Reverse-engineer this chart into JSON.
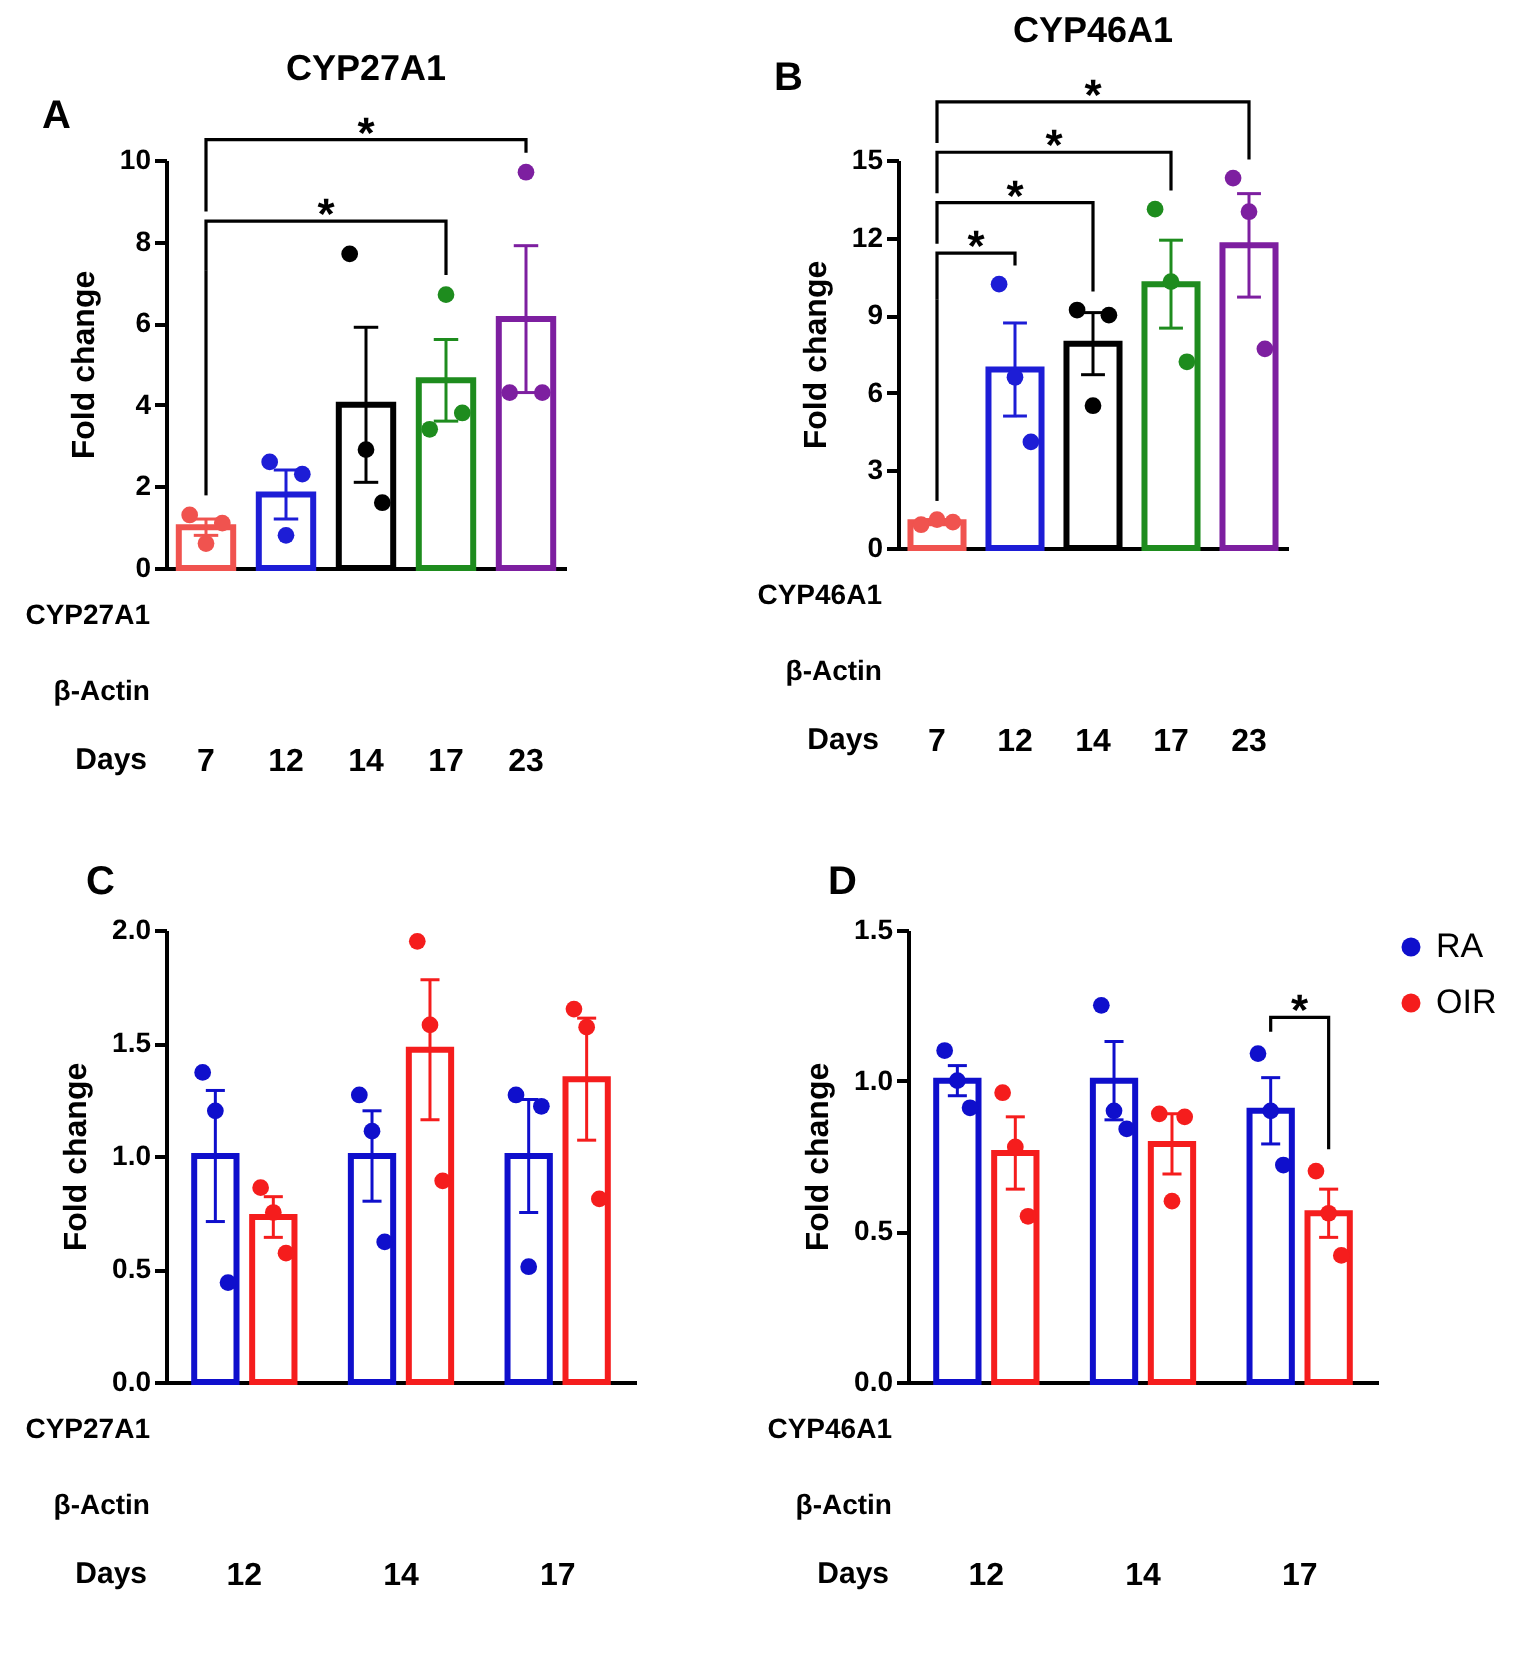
{
  "chart_data": [
    {
      "type": "bar",
      "title": "CYP27A1",
      "xlabel": "Days",
      "ylabel": "Fold change",
      "categories": [
        "7",
        "12",
        "14",
        "17",
        "23"
      ],
      "series": [
        {
          "values": [
            1.0,
            1.8,
            4.0,
            4.6,
            6.1
          ],
          "colors": [
            "#f0534f",
            "#1d1dd6",
            "#000000",
            "#1e8c1e",
            "#7d1fa0"
          ],
          "errors": [
            0.2,
            0.6,
            1.9,
            1.0,
            1.8
          ]
        },
        {
          "type": "scatter",
          "marker": "circle",
          "x": [
            "7",
            "7",
            "7",
            "12",
            "12",
            "12",
            "14",
            "14",
            "14",
            "17",
            "17",
            "17",
            "23",
            "23",
            "23"
          ],
          "values": [
            1.3,
            0.6,
            1.1,
            2.6,
            0.8,
            2.3,
            7.7,
            2.9,
            1.6,
            3.4,
            6.7,
            3.8,
            4.3,
            9.7,
            4.3
          ],
          "colors": [
            "#f0534f",
            "#f0534f",
            "#f0534f",
            "#1d1dd6",
            "#1d1dd6",
            "#1d1dd6",
            "#000000",
            "#000000",
            "#000000",
            "#1e8c1e",
            "#1e8c1e",
            "#1e8c1e",
            "#7d1fa0",
            "#7d1fa0",
            "#7d1fa0"
          ]
        }
      ],
      "ylim": [
        0,
        10
      ],
      "yticks": [
        0,
        2,
        4,
        6,
        8,
        10
      ],
      "annotations": [
        "A",
        "CYP27A1",
        "β-Actin",
        "*",
        "*"
      ]
    },
    {
      "type": "bar",
      "title": "CYP46A1",
      "xlabel": "Days",
      "ylabel": "Fold change",
      "categories": [
        "7",
        "12",
        "14",
        "17",
        "23"
      ],
      "series": [
        {
          "values": [
            1.0,
            6.9,
            7.9,
            10.2,
            11.7
          ],
          "colors": [
            "#f0534f",
            "#1d1dd6",
            "#000000",
            "#1e8c1e",
            "#7d1fa0"
          ],
          "errors": [
            0.1,
            1.8,
            1.2,
            1.7,
            2.0
          ]
        },
        {
          "type": "scatter",
          "marker": "circle",
          "x": [
            "7",
            "7",
            "7",
            "12",
            "12",
            "12",
            "14",
            "14",
            "14",
            "17",
            "17",
            "17",
            "23",
            "23",
            "23"
          ],
          "values": [
            0.9,
            1.1,
            1.0,
            10.2,
            6.6,
            4.1,
            9.2,
            5.5,
            9.0,
            13.1,
            10.3,
            7.2,
            14.3,
            13.0,
            7.7
          ],
          "colors": [
            "#f0534f",
            "#f0534f",
            "#f0534f",
            "#1d1dd6",
            "#1d1dd6",
            "#1d1dd6",
            "#000000",
            "#000000",
            "#000000",
            "#1e8c1e",
            "#1e8c1e",
            "#1e8c1e",
            "#7d1fa0",
            "#7d1fa0",
            "#7d1fa0"
          ]
        }
      ],
      "ylim": [
        0,
        15
      ],
      "yticks": [
        0,
        3,
        6,
        9,
        12,
        15
      ],
      "annotations": [
        "B",
        "CYP46A1",
        "β-Actin",
        "*",
        "*",
        "*",
        "*"
      ]
    },
    {
      "type": "bar",
      "xlabel": "Days",
      "ylabel": "Fold change",
      "categories": [
        "12",
        "14",
        "17"
      ],
      "series": [
        {
          "color": "#0f0fcc",
          "values": [
            1.0,
            1.0,
            1.0
          ],
          "errors": [
            0.29,
            0.2,
            0.25
          ]
        },
        {
          "color": "#f51d1d",
          "values": [
            0.73,
            1.47,
            1.34
          ],
          "errors": [
            0.09,
            0.31,
            0.27
          ]
        },
        {
          "type": "scatter",
          "marker": "circle",
          "color": "#0f0fcc",
          "x": [
            "12",
            "12",
            "12",
            "14",
            "14",
            "14",
            "17",
            "17",
            "17"
          ],
          "values": [
            1.37,
            1.2,
            0.44,
            1.27,
            1.11,
            0.62,
            1.27,
            0.51,
            1.22
          ]
        },
        {
          "type": "scatter",
          "marker": "circle",
          "color": "#f51d1d",
          "x": [
            "12",
            "12",
            "12",
            "14",
            "14",
            "14",
            "17",
            "17",
            "17"
          ],
          "values": [
            0.86,
            0.75,
            0.57,
            1.95,
            1.58,
            0.89,
            1.65,
            1.57,
            0.81
          ]
        }
      ],
      "ylim": [
        0,
        2
      ],
      "yticks": [
        {
          "value": 0,
          "label": "0.0"
        },
        {
          "value": 0.5,
          "label": "0.5"
        },
        {
          "value": 1,
          "label": "1.0"
        },
        {
          "value": 1.5,
          "label": "1.5"
        },
        {
          "value": 2,
          "label": "2.0"
        }
      ],
      "annotations": [
        "C",
        "CYP27A1",
        "β-Actin"
      ]
    },
    {
      "type": "bar",
      "xlabel": "Days",
      "ylabel": "Fold change",
      "categories": [
        "12",
        "14",
        "17"
      ],
      "series": [
        {
          "color": "#0f0fcc",
          "values": [
            1.0,
            1.0,
            0.9
          ],
          "errors": [
            0.05,
            0.13,
            0.11
          ]
        },
        {
          "color": "#f51d1d",
          "values": [
            0.76,
            0.79,
            0.56
          ],
          "errors": [
            0.12,
            0.1,
            0.08
          ]
        },
        {
          "type": "scatter",
          "name": "RA",
          "marker": "circle",
          "color": "#0f0fcc",
          "x": [
            "12",
            "12",
            "12",
            "14",
            "14",
            "14",
            "17",
            "17",
            "17"
          ],
          "values": [
            1.1,
            1.0,
            0.91,
            1.25,
            0.9,
            0.84,
            1.09,
            0.9,
            0.72
          ]
        },
        {
          "type": "scatter",
          "name": "OIR",
          "marker": "circle",
          "color": "#f51d1d",
          "x": [
            "12",
            "12",
            "12",
            "14",
            "14",
            "14",
            "17",
            "17",
            "17"
          ],
          "values": [
            0.96,
            0.78,
            0.55,
            0.89,
            0.6,
            0.88,
            0.7,
            0.56,
            0.42
          ]
        }
      ],
      "ylim": [
        0,
        1.5
      ],
      "yticks": [
        {
          "value": 0,
          "label": "0.0"
        },
        {
          "value": 0.5,
          "label": "0.5"
        },
        {
          "value": 1,
          "label": "1.0"
        },
        {
          "value": 1.5,
          "label": "1.5"
        }
      ],
      "legend": "top right",
      "annotations": [
        "D",
        "CYP46A1",
        "β-Actin",
        "*"
      ]
    }
  ]
}
